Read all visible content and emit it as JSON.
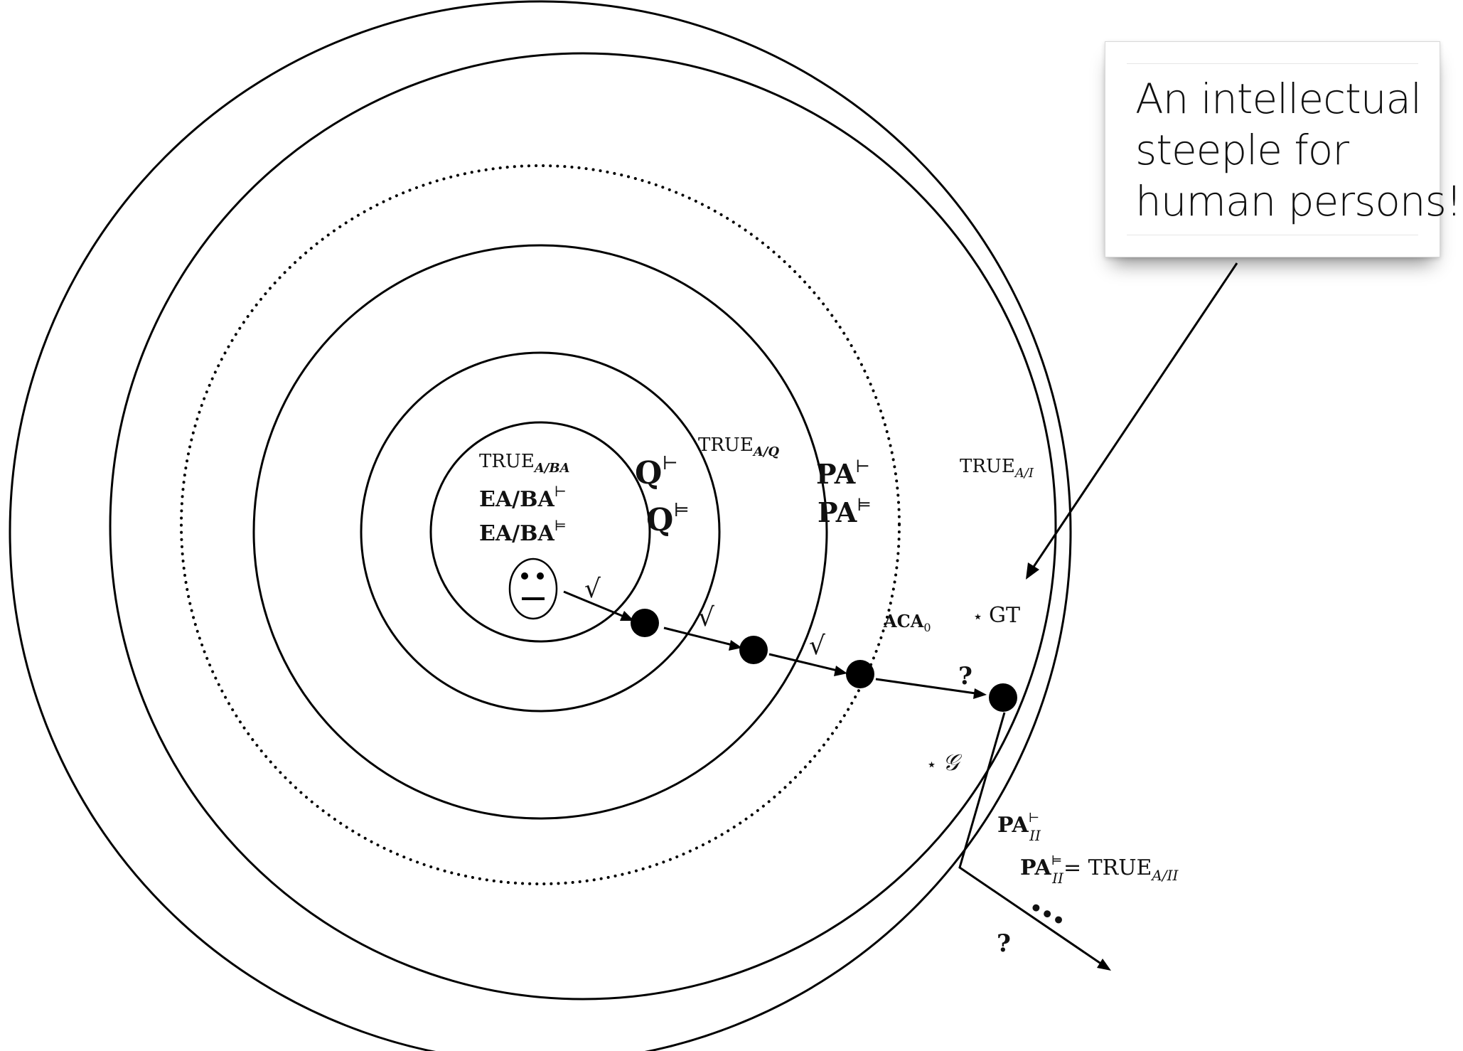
{
  "callout": {
    "lines": [
      "An intellectual",
      "steeple for",
      "human persons!"
    ]
  },
  "labels": {
    "true_a_ba": {
      "base": "TRUE",
      "sub": "A/BA"
    },
    "ea_ba_turnstile": {
      "base": "EA/BA",
      "sup": "⊢"
    },
    "ea_ba_models": {
      "base": "EA/BA",
      "sup": "⊨"
    },
    "q_turnstile": {
      "base": "Q",
      "sup": "⊢"
    },
    "q_models": {
      "base": "Q",
      "sup": "⊨"
    },
    "true_a_q": {
      "base": "TRUE",
      "sub": "A/Q"
    },
    "pa_turnstile": {
      "base": "PA",
      "sup": "⊢"
    },
    "pa_models": {
      "base": "PA",
      "sup": "⊨"
    },
    "true_a_i": {
      "base": "TRUE",
      "sub": "A/I"
    },
    "aca0": {
      "base": "ACA",
      "sub": "0"
    },
    "gt": {
      "star": "⋆",
      "text": "GT"
    },
    "g": {
      "star": "⋆",
      "text": "𝒢"
    },
    "pa_ii_turnstile": {
      "base": "PA",
      "sup": "⊢",
      "sub": "II"
    },
    "pa_ii_models": {
      "base": "PA",
      "sup": "⊨",
      "sub": "II",
      "eq": "= TRUE",
      "eq_sub": "A/II"
    },
    "ellipsis": "•••",
    "checks": [
      "√",
      "√",
      "√"
    ],
    "questions": [
      "?",
      "?"
    ]
  }
}
